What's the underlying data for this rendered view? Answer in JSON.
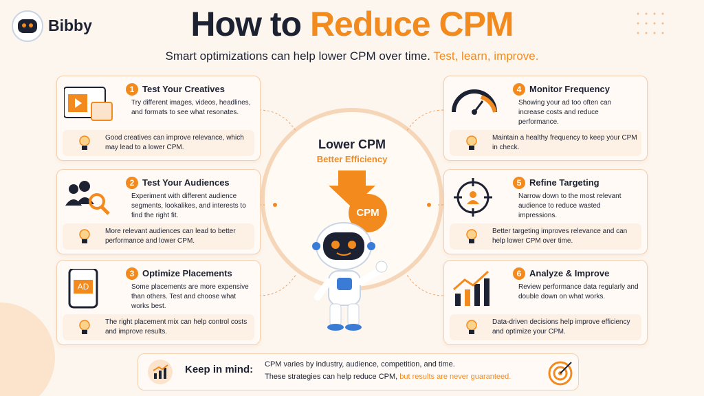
{
  "logo": "Bibby",
  "header": {
    "title_part1": "How to ",
    "title_part2": "Reduce CPM",
    "subtitle_part1": "Smart optimizations can help lower CPM over time.",
    "subtitle_part2": "Test, learn, improve."
  },
  "center": {
    "title": "Lower CPM",
    "subtitle": "Better Efficiency",
    "badge": "CPM"
  },
  "cards": [
    {
      "number": "1",
      "title": "Test Your Creatives",
      "body": "Try different images, videos, headlines, and formats to see what resonates.",
      "tip": "Good creatives can improve relevance, which may lead to a lower CPM."
    },
    {
      "number": "2",
      "title": "Test Your Audiences",
      "body": "Experiment with different audience segments, lookalikes, and interests to find the right fit.",
      "tip": "More relevant audiences can lead to better performance and lower CPM."
    },
    {
      "number": "3",
      "title": "Optimize Placements",
      "body": "Some placements are more expensive than others. Test and choose what works best.",
      "tip": "The right placement mix can help control costs and improve results.",
      "icon_label": "AD"
    },
    {
      "number": "4",
      "title": "Monitor Frequency",
      "body": "Showing your ad too often can increase costs and reduce performance.",
      "tip": "Maintain a healthy frequency to keep your CPM in check."
    },
    {
      "number": "5",
      "title": "Refine Targeting",
      "body": "Narrow down to the most relevant audience to reduce wasted impressions.",
      "tip": "Better targeting improves relevance and can help lower CPM over time."
    },
    {
      "number": "6",
      "title": "Analyze & Improve",
      "body": "Review performance data regularly and double down on what works.",
      "tip": "Data-driven decisions help improve efficiency and optimize your CPM."
    }
  ],
  "footer": {
    "label": "Keep in mind:",
    "line1": "CPM varies by industry, audience, competition, and time.",
    "line2_part1": "These strategies can help reduce CPM,",
    "line2_part2": "but results are never guaranteed."
  }
}
